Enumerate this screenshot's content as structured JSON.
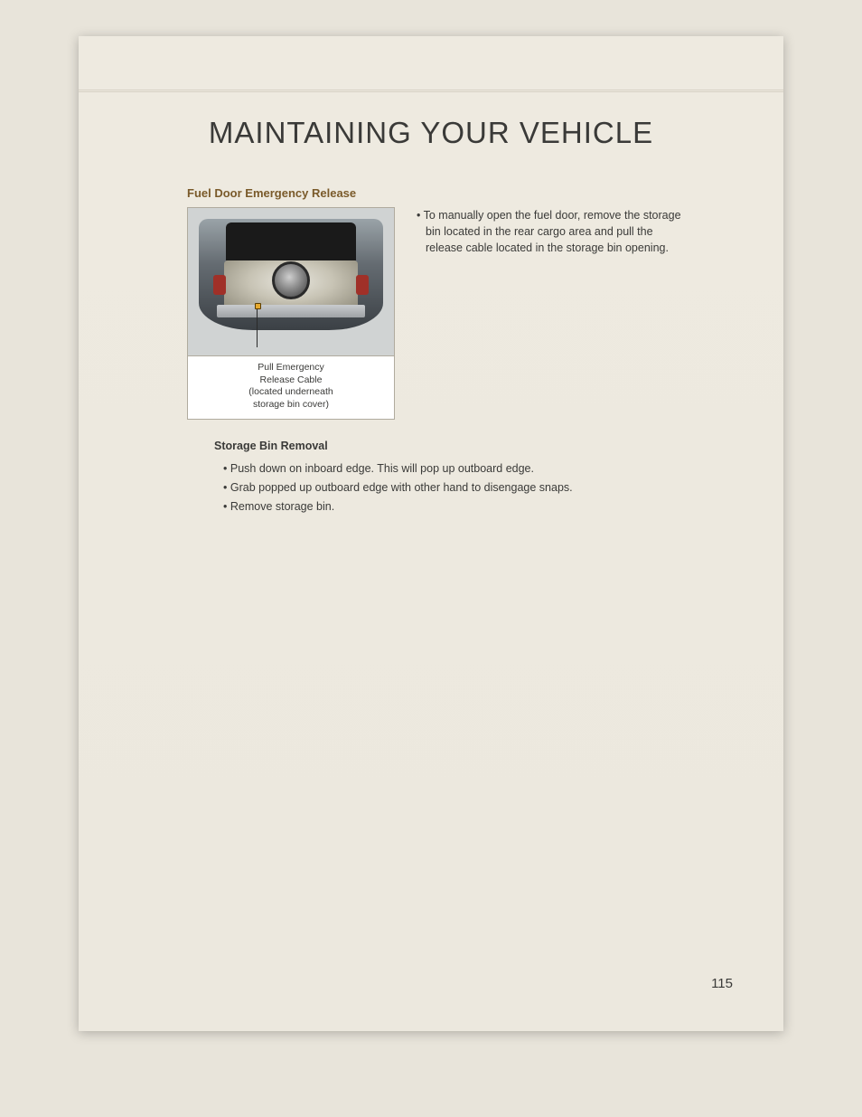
{
  "header": {
    "title": "MAINTAINING YOUR VEHICLE"
  },
  "section": {
    "heading": "Fuel Door Emergency Release",
    "figure_caption_line1": "Pull Emergency",
    "figure_caption_line2": "Release Cable",
    "figure_caption_line3": "(located underneath",
    "figure_caption_line4": "storage bin cover)",
    "right_bullet": "To manually open the fuel door, remove the storage bin located in the rear cargo area and pull the release cable located in the storage bin opening."
  },
  "subsection": {
    "heading": "Storage Bin Removal",
    "bullets": {
      "0": "Push down on inboard edge. This will pop up outboard edge.",
      "1": "Grab popped up outboard edge with other hand to disengage snaps.",
      "2": "Remove storage bin."
    }
  },
  "page_number": "115",
  "colors": {
    "page_bg": "#ece8de",
    "outer_bg": "#e8e4da",
    "heading_brown": "#7a5a2a",
    "text": "#3a3a38"
  }
}
